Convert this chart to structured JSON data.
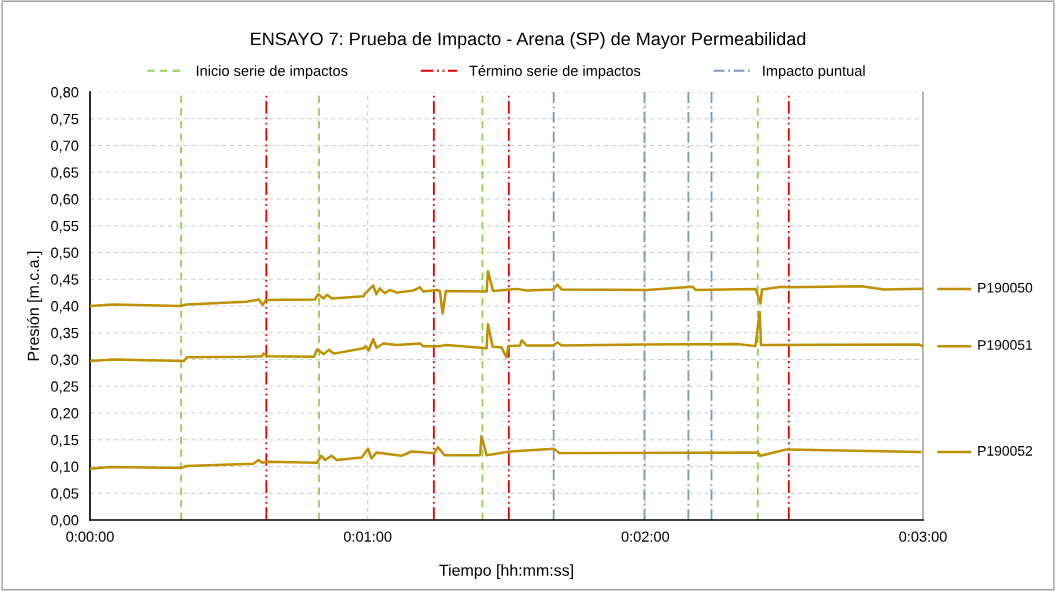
{
  "chart_data": {
    "type": "line",
    "title": "ENSAYO 7: Prueba de Impacto - Arena (SP) de Mayor Permeabilidad",
    "xlabel": "Tiempo [hh:mm:ss]",
    "ylabel": "Presión [m.c.a.]",
    "xlim": [
      0,
      180
    ],
    "xticks": [
      {
        "value": 0,
        "label": "0:00:00"
      },
      {
        "value": 60,
        "label": "0:01:00"
      },
      {
        "value": 120,
        "label": "0:02:00"
      },
      {
        "value": 180,
        "label": "0:03:00"
      }
    ],
    "ylim": [
      0,
      0.8
    ],
    "yticks": [
      {
        "value": 0,
        "label": "0,00"
      },
      {
        "value": 0.05,
        "label": "0,05"
      },
      {
        "value": 0.1,
        "label": "0,10"
      },
      {
        "value": 0.15,
        "label": "0,15"
      },
      {
        "value": 0.2,
        "label": "0,20"
      },
      {
        "value": 0.25,
        "label": "0,25"
      },
      {
        "value": 0.3,
        "label": "0,30"
      },
      {
        "value": 0.35,
        "label": "0,35"
      },
      {
        "value": 0.4,
        "label": "0,40"
      },
      {
        "value": 0.45,
        "label": "0,45"
      },
      {
        "value": 0.5,
        "label": "0,50"
      },
      {
        "value": 0.55,
        "label": "0,55"
      },
      {
        "value": 0.6,
        "label": "0,60"
      },
      {
        "value": 0.65,
        "label": "0,65"
      },
      {
        "value": 0.7,
        "label": "0,70"
      },
      {
        "value": 0.75,
        "label": "0,75"
      },
      {
        "value": 0.8,
        "label": "0,80"
      }
    ],
    "grid": true,
    "legend": "top",
    "line_style": "solid",
    "marker": "none",
    "series": [
      {
        "name": "P190050",
        "color": "#bf9000",
        "x": [
          0,
          5,
          19.5,
          20.9,
          33.8,
          36.5,
          37.3,
          38,
          48.6,
          49.3,
          50.5,
          51.2,
          52.3,
          59.1,
          59.5,
          61.2,
          61.9,
          62.6,
          63.7,
          64.8,
          66.3,
          69.9,
          71.3,
          72,
          74.9,
          75.6,
          76.2,
          76.9,
          85.7,
          86,
          87.1,
          92.2,
          94.4,
          100.1,
          101,
          101.9,
          120.3,
          130.2,
          130.9,
          143.8,
          144.9,
          145.2,
          149.5,
          150.9,
          166.7,
          171.6,
          179.7
        ],
        "values": [
          0.4,
          0.403,
          0.4,
          0.403,
          0.408,
          0.412,
          0.402,
          0.411,
          0.412,
          0.422,
          0.414,
          0.421,
          0.414,
          0.418,
          0.424,
          0.438,
          0.422,
          0.433,
          0.424,
          0.43,
          0.425,
          0.429,
          0.435,
          0.427,
          0.43,
          0.428,
          0.386,
          0.428,
          0.427,
          0.465,
          0.428,
          0.432,
          0.429,
          0.431,
          0.44,
          0.431,
          0.43,
          0.436,
          0.43,
          0.432,
          0.405,
          0.431,
          0.436,
          0.435,
          0.437,
          0.431,
          0.432
        ]
      },
      {
        "name": "P190051",
        "color": "#bf9000",
        "x": [
          0,
          5,
          20.3,
          20.9,
          33.8,
          37.1,
          37.5,
          38.5,
          48.4,
          49.1,
          50.5,
          51.6,
          52.7,
          59.1,
          59.5,
          60.2,
          61.2,
          61.9,
          63.4,
          66.3,
          71.3,
          72,
          75.6,
          77,
          85.7,
          86,
          87,
          88.9,
          90,
          90.4,
          92.9,
          93.3,
          94.4,
          100.1,
          101,
          101.9,
          119.6,
          139.8,
          143.8,
          144.7,
          145,
          179.2,
          179.9
        ],
        "values": [
          0.297,
          0.3,
          0.297,
          0.304,
          0.305,
          0.306,
          0.311,
          0.306,
          0.305,
          0.319,
          0.31,
          0.318,
          0.311,
          0.321,
          0.325,
          0.317,
          0.338,
          0.322,
          0.33,
          0.327,
          0.33,
          0.325,
          0.325,
          0.327,
          0.321,
          0.366,
          0.324,
          0.323,
          0.304,
          0.325,
          0.326,
          0.336,
          0.326,
          0.326,
          0.332,
          0.326,
          0.328,
          0.329,
          0.325,
          0.389,
          0.327,
          0.328,
          0.325
        ]
      },
      {
        "name": "P190052",
        "color": "#bf9000",
        "x": [
          0,
          4.3,
          19.5,
          20.9,
          35.3,
          36.4,
          37.2,
          38.2,
          49,
          50,
          50.8,
          52.2,
          53.3,
          58.7,
          60.1,
          60.8,
          61.9,
          67.3,
          69.5,
          74.4,
          75.2,
          76.6,
          84.3,
          84.6,
          85.7,
          90.8,
          100.3,
          101.4,
          144.4,
          144.8,
          150.6,
          179.4
        ],
        "values": [
          0.096,
          0.099,
          0.097,
          0.101,
          0.105,
          0.112,
          0.107,
          0.109,
          0.107,
          0.12,
          0.112,
          0.12,
          0.112,
          0.117,
          0.133,
          0.115,
          0.126,
          0.12,
          0.128,
          0.125,
          0.136,
          0.121,
          0.121,
          0.157,
          0.121,
          0.128,
          0.133,
          0.125,
          0.126,
          0.12,
          0.132,
          0.127
        ]
      }
    ],
    "ref_lines": [
      {
        "axis": "x",
        "value": 19.7,
        "label": "Inicio serie de impactos",
        "color": "#92d050",
        "line_style": "dashed"
      },
      {
        "axis": "x",
        "value": 49.5,
        "color": "#92d050",
        "line_style": "dashed"
      },
      {
        "axis": "x",
        "value": 84.8,
        "color": "#92d050",
        "line_style": "dashed"
      },
      {
        "axis": "x",
        "value": 144.3,
        "color": "#92d050",
        "line_style": "dashed"
      },
      {
        "axis": "x",
        "value": 38.1,
        "label": "Término serie de impactos",
        "color": "#e00000",
        "line_style": "dashdotdot"
      },
      {
        "axis": "x",
        "value": 74.3,
        "color": "#e00000",
        "line_style": "dashdotdot"
      },
      {
        "axis": "x",
        "value": 90.5,
        "color": "#e00000",
        "line_style": "dashdotdot"
      },
      {
        "axis": "x",
        "value": 151,
        "color": "#e00000",
        "line_style": "dashdotdot"
      },
      {
        "axis": "x",
        "value": 100.2,
        "label": "Impacto puntual",
        "color": "#8497b0",
        "line_style": "dashdot"
      },
      {
        "axis": "x",
        "value": 119.8,
        "color": "#8497b0",
        "line_style": "dashdot"
      },
      {
        "axis": "x",
        "value": 129.3,
        "color": "#8497b0",
        "line_style": "dashdot"
      },
      {
        "axis": "x",
        "value": 134.3,
        "color": "#8497b0",
        "line_style": "dashdot"
      }
    ]
  }
}
